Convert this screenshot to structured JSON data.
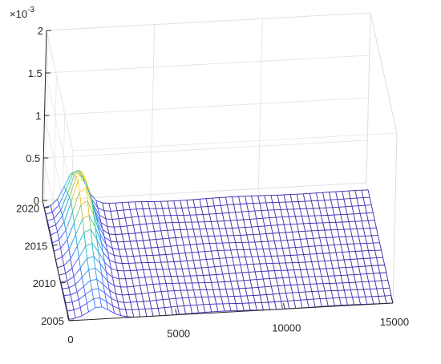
{
  "chart_data": {
    "type": "surface-mesh",
    "title": "",
    "xlabel": "",
    "ylabel": "",
    "zlabel": "",
    "z_exponent_label": {
      "base": "×10",
      "exp": "-3"
    },
    "xlim": [
      0,
      15000
    ],
    "ylim": [
      2005,
      2021
    ],
    "zlim": [
      0,
      0.002
    ],
    "x_ticks": [
      0,
      5000,
      10000,
      15000
    ],
    "x_tick_labels": [
      "0",
      "5000",
      "10000",
      "15000"
    ],
    "y_ticks": [
      2005,
      2010,
      2015,
      2020
    ],
    "y_tick_labels": [
      "2005",
      "2010",
      "2015",
      "2020"
    ],
    "z_ticks": [
      0,
      0.0005,
      0.001,
      0.0015,
      0.002
    ],
    "z_tick_labels": [
      "0",
      "0.5",
      "1",
      "1.5",
      "2"
    ],
    "grid": true,
    "colormap": [
      "#3e26a8",
      "#4746eb",
      "#3e6ffe",
      "#2797eb",
      "#1caadf",
      "#1cbbbe",
      "#47c68e",
      "#a5be4d",
      "#edba30",
      "#f9d125",
      "#f9fb15"
    ],
    "years": [
      2005,
      2006,
      2007,
      2008,
      2009,
      2010,
      2011,
      2012,
      2013,
      2014,
      2015,
      2016,
      2017,
      2018,
      2019,
      2020
    ],
    "x_sample_step": 300,
    "z_peak_by_year": [
      0.00012,
      0.00014,
      0.00017,
      0.0002,
      0.00025,
      0.0003,
      0.00036,
      0.00043,
      0.0005,
      0.00058,
      0.00065,
      0.0007,
      0.00066,
      0.0006,
      0.00052,
      0.00042
    ],
    "z_peak_x": 1400,
    "z_peak_width": 650
  }
}
